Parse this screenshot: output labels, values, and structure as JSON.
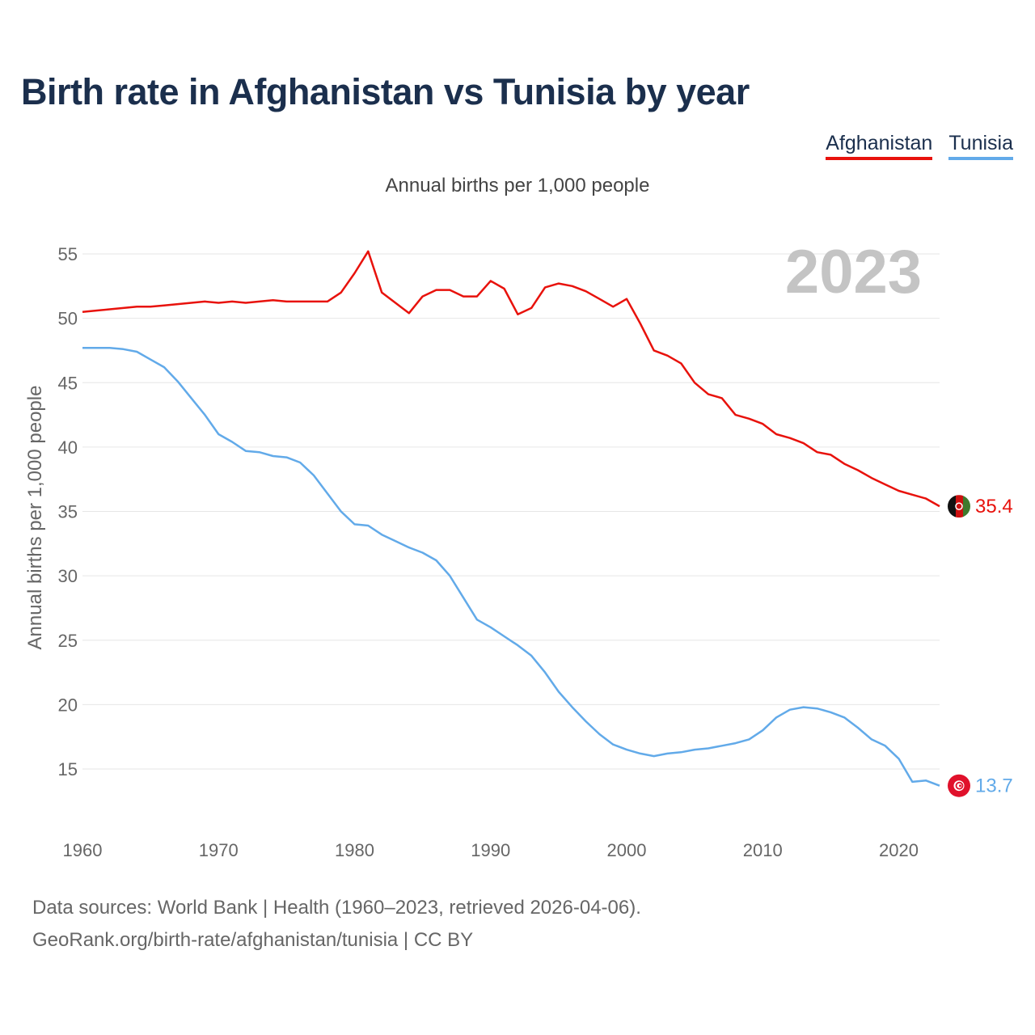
{
  "title": "Birth rate in Afghanistan vs Tunisia by year",
  "subtitle": "Annual births per 1,000 people",
  "legend": [
    {
      "name": "Afghanistan",
      "color": "#e8120c"
    },
    {
      "name": "Tunisia",
      "color": "#62aae9"
    }
  ],
  "footer": {
    "line1": "Data sources: World Bank | Health (1960–2023, retrieved 2026-04-06).",
    "line2": "GeoRank.org/birth-rate/afghanistan/tunisia | CC BY"
  },
  "chart_data": {
    "type": "line",
    "title": "Birth rate in Afghanistan vs Tunisia by year",
    "ylabel": "Annual births per 1,000 people",
    "xlabel": "",
    "xlim": [
      1960,
      2023
    ],
    "ylim": [
      10,
      57
    ],
    "xticks": [
      1960,
      1970,
      1980,
      1990,
      2000,
      2010,
      2020
    ],
    "yticks": [
      15,
      20,
      25,
      30,
      35,
      40,
      45,
      50,
      55
    ],
    "grid": true,
    "current_year": "2023",
    "x": [
      1960,
      1961,
      1962,
      1963,
      1964,
      1965,
      1966,
      1967,
      1968,
      1969,
      1970,
      1971,
      1972,
      1973,
      1974,
      1975,
      1976,
      1977,
      1978,
      1979,
      1980,
      1981,
      1982,
      1983,
      1984,
      1985,
      1986,
      1987,
      1988,
      1989,
      1990,
      1991,
      1992,
      1993,
      1994,
      1995,
      1996,
      1997,
      1998,
      1999,
      2000,
      2001,
      2002,
      2003,
      2004,
      2005,
      2006,
      2007,
      2008,
      2009,
      2010,
      2011,
      2012,
      2013,
      2014,
      2015,
      2016,
      2017,
      2018,
      2019,
      2020,
      2021,
      2022,
      2023
    ],
    "series": [
      {
        "name": "Afghanistan",
        "color": "#e8120c",
        "end_label": "35.4",
        "values": [
          50.5,
          50.6,
          50.7,
          50.8,
          50.9,
          50.9,
          51.0,
          51.1,
          51.2,
          51.3,
          51.2,
          51.3,
          51.2,
          51.3,
          51.4,
          51.3,
          51.3,
          51.3,
          51.3,
          52.0,
          53.5,
          55.2,
          52.0,
          51.2,
          50.4,
          51.7,
          52.2,
          52.2,
          51.7,
          51.7,
          52.9,
          52.3,
          50.3,
          50.8,
          52.4,
          52.7,
          52.5,
          52.1,
          51.5,
          50.9,
          51.5,
          49.6,
          47.5,
          47.1,
          46.5,
          45.0,
          44.1,
          43.8,
          42.5,
          42.2,
          41.8,
          41.0,
          40.7,
          40.3,
          39.6,
          39.4,
          38.7,
          38.2,
          37.6,
          37.1,
          36.6,
          36.3,
          36.0,
          35.4
        ]
      },
      {
        "name": "Tunisia",
        "color": "#62aae9",
        "end_label": "13.7",
        "values": [
          47.7,
          47.7,
          47.7,
          47.6,
          47.4,
          46.8,
          46.2,
          45.1,
          43.8,
          42.5,
          41.0,
          40.4,
          39.7,
          39.6,
          39.3,
          39.2,
          38.8,
          37.8,
          36.4,
          35.0,
          34.0,
          33.9,
          33.2,
          32.7,
          32.2,
          31.8,
          31.2,
          30.0,
          28.3,
          26.6,
          26.0,
          25.3,
          24.6,
          23.8,
          22.5,
          21.0,
          19.8,
          18.7,
          17.7,
          16.9,
          16.5,
          16.2,
          16.0,
          16.2,
          16.3,
          16.5,
          16.6,
          16.8,
          17.0,
          17.3,
          18.0,
          19.0,
          19.6,
          19.8,
          19.7,
          19.4,
          19.0,
          18.2,
          17.3,
          16.8,
          15.8,
          14.0,
          14.1,
          13.7
        ]
      }
    ]
  }
}
